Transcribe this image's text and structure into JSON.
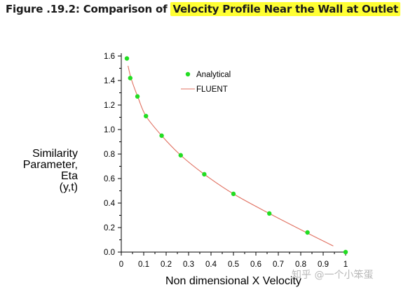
{
  "figure": {
    "title_prefix": "Figure .19.2: Comparison of ",
    "title_highlight": "Velocity Profile Near the Wall at Outlet",
    "highlight_color": "#ffff33"
  },
  "watermark": "知乎 @一个小笨蛋",
  "chart_data": {
    "type": "scatter",
    "title": "",
    "xlabel": "Non dimensional X Velocity",
    "ylabel_lines": [
      "Similarity",
      "Parameter,",
      "Eta",
      "(y,t)"
    ],
    "xlim": [
      0,
      1
    ],
    "ylim": [
      0,
      1.6
    ],
    "x_ticks": [
      "0",
      "0.1",
      "0.2",
      "0.3",
      "0.4",
      "0.5",
      "0.6",
      "0.7",
      "0.8",
      "0.9",
      "1"
    ],
    "y_ticks": [
      "0.0",
      "0.2",
      "0.4",
      "0.6",
      "0.8",
      "1.0",
      "1.2",
      "1.4",
      "1.6"
    ],
    "legend": {
      "placement": "top-right",
      "entries": [
        "Analytical",
        "FLUENT"
      ]
    },
    "series": [
      {
        "name": "Analytical",
        "kind": "points",
        "color": "#22dd22",
        "x": [
          0.025,
          0.04,
          0.072,
          0.11,
          0.18,
          0.265,
          0.37,
          0.5,
          0.66,
          0.83,
          1.0
        ],
        "y": [
          1.58,
          1.42,
          1.27,
          1.11,
          0.95,
          0.79,
          0.635,
          0.475,
          0.315,
          0.16,
          0.0
        ]
      },
      {
        "name": "FLUENT",
        "kind": "line",
        "color": "#e07060",
        "x": [
          0.03,
          0.045,
          0.075,
          0.11,
          0.18,
          0.265,
          0.37,
          0.5,
          0.66,
          0.83,
          0.945
        ],
        "y": [
          1.52,
          1.41,
          1.26,
          1.11,
          0.95,
          0.79,
          0.635,
          0.475,
          0.315,
          0.155,
          0.05
        ]
      }
    ]
  }
}
